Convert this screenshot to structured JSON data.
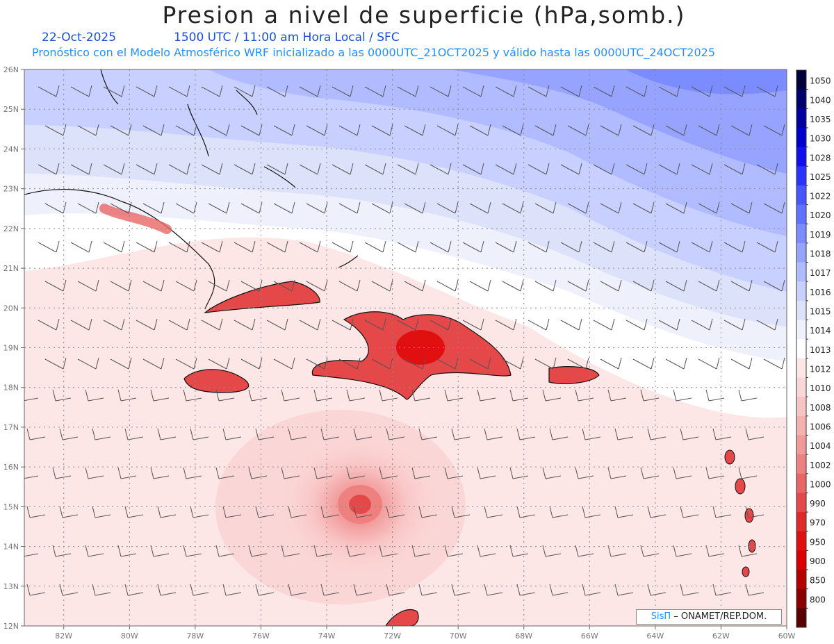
{
  "title": "Presion a nivel de superficie (hPa,somb.)",
  "subtitle": {
    "date": "22-Oct-2025",
    "time": "1500 UTC / 11:00 am Hora Local / SFC",
    "model": "Pronóstico con el Modelo Atmosférico WRF inicializado a las 0000UTC_21OCT2025 y válido hasta las  0000UTC_24OCT2025"
  },
  "axes": {
    "lat_labels": [
      "26N",
      "25N",
      "24N",
      "23N",
      "22N",
      "21N",
      "20N",
      "19N",
      "18N",
      "17N",
      "16N",
      "15N",
      "14N",
      "13N",
      "12N"
    ],
    "lon_labels": [
      "82W",
      "80W",
      "78W",
      "76W",
      "74W",
      "72W",
      "70W",
      "68W",
      "66W",
      "64W",
      "62W",
      "60W"
    ],
    "lat_range": [
      12,
      26
    ],
    "lon_range": [
      -83.2,
      -60
    ]
  },
  "colorbar": {
    "levels": [
      "1050",
      "1040",
      "1035",
      "1030",
      "1028",
      "1025",
      "1022",
      "1020",
      "1019",
      "1018",
      "1017",
      "1016",
      "1015",
      "1014",
      "1013",
      "1012",
      "1010",
      "1008",
      "1006",
      "1004",
      "1002",
      "1000",
      "990",
      "970",
      "950",
      "900",
      "850",
      "800"
    ],
    "colors": [
      "#00003a",
      "#00006e",
      "#0000a0",
      "#0000cc",
      "#1010ee",
      "#2a32ff",
      "#4656ff",
      "#5e72ff",
      "#7a8cff",
      "#96a4ff",
      "#b0bcff",
      "#c8d0ff",
      "#dde2fb",
      "#eef0fc",
      "#ffffff",
      "#fde6e6",
      "#fbd6d6",
      "#f9c4c4",
      "#f6b0b0",
      "#f29a9a",
      "#ee8080",
      "#e96666",
      "#e44848",
      "#e02a2a",
      "#e01010",
      "#d80000",
      "#b40000",
      "#8c0000",
      "#5a0000"
    ]
  },
  "credit": {
    "brand": "SisΠ",
    "text": " – ONAMET/REP.DOM."
  }
}
